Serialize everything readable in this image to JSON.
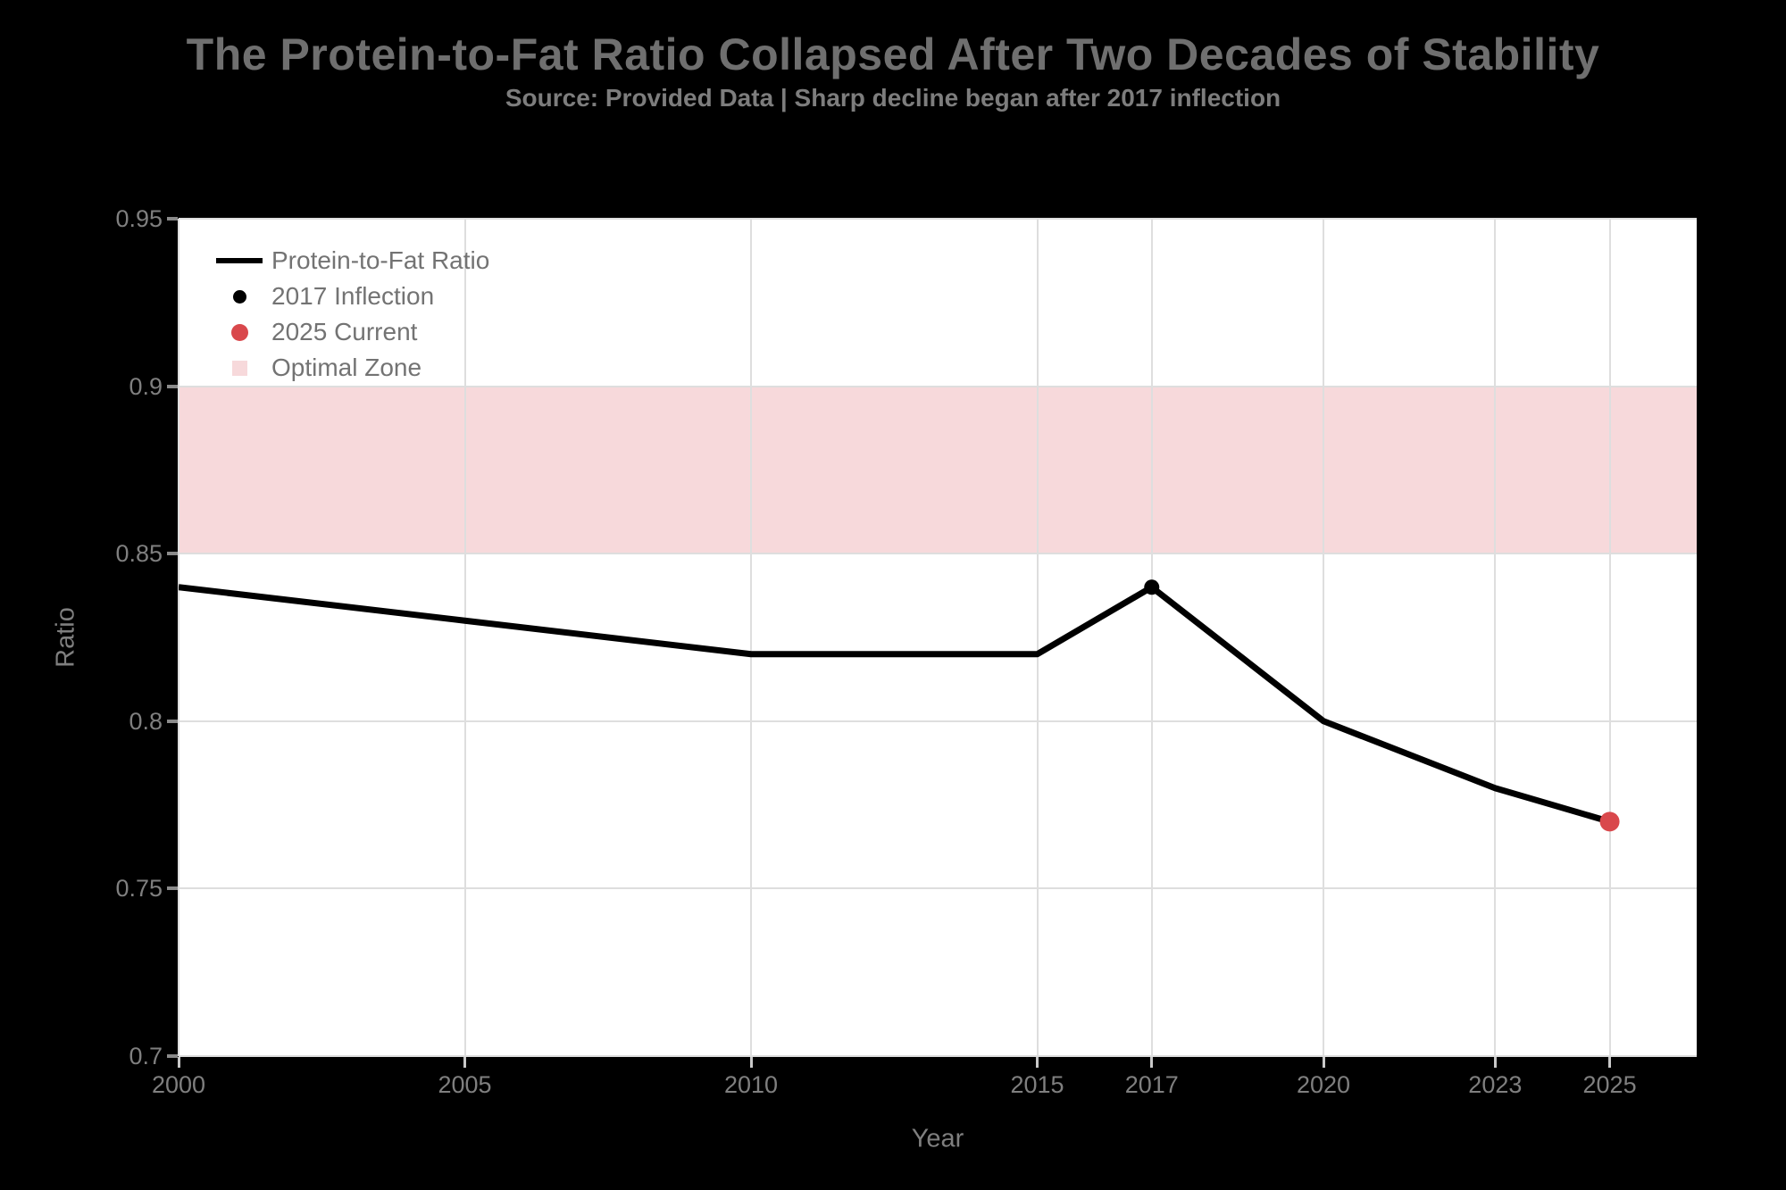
{
  "header": {
    "title": "The Protein-to-Fat Ratio Collapsed After Two Decades of Stability",
    "subtitle": "Source: Provided Data | Sharp decline began after 2017 inflection"
  },
  "chart_data": {
    "type": "line",
    "title": "The Protein-to-Fat Ratio Collapsed After Two Decades of Stability",
    "subtitle": "Source: Provided Data | Sharp decline began after 2017 inflection",
    "xlabel": "Year",
    "ylabel": "Ratio",
    "xlim": [
      2000,
      2026.52
    ],
    "ylim": [
      0.7,
      0.95
    ],
    "grid": true,
    "legend_position": "top-left",
    "x_ticks": [
      {
        "value": 2000,
        "label": "2000"
      },
      {
        "value": 2005,
        "label": "2005"
      },
      {
        "value": 2010,
        "label": "2010"
      },
      {
        "value": 2015,
        "label": "2015"
      },
      {
        "value": 2017,
        "label": "2017"
      },
      {
        "value": 2020,
        "label": "2020"
      },
      {
        "value": 2023,
        "label": "2023"
      },
      {
        "value": 2025,
        "label": "2025"
      }
    ],
    "y_ticks": [
      {
        "value": 0.7,
        "label": "0.7"
      },
      {
        "value": 0.75,
        "label": "0.75"
      },
      {
        "value": 0.8,
        "label": "0.8"
      },
      {
        "value": 0.85,
        "label": "0.85"
      },
      {
        "value": 0.9,
        "label": "0.9"
      },
      {
        "value": 0.95,
        "label": "0.95"
      }
    ],
    "series": [
      {
        "name": "Protein-to-Fat Ratio",
        "color": "#000000",
        "line_width": 7,
        "x": [
          2000,
          2005,
          2010,
          2015,
          2017,
          2020,
          2023,
          2025
        ],
        "y": [
          0.84,
          0.83,
          0.82,
          0.82,
          0.84,
          0.8,
          0.78,
          0.77
        ]
      }
    ],
    "markers": [
      {
        "name": "2017 Inflection",
        "x": 2017,
        "y": 0.84,
        "color": "#000000",
        "diameter": 17
      },
      {
        "name": "2025 Current",
        "x": 2025,
        "y": 0.77,
        "color": "#d9484c",
        "diameter": 22
      }
    ],
    "bands": [
      {
        "name": "Optimal Zone",
        "from": 0.85,
        "to": 0.9,
        "color": "#f7d9db"
      }
    ],
    "legend": [
      {
        "label": "Protein-to-Fat Ratio",
        "swatch": "line",
        "color": "#000000",
        "size": 6
      },
      {
        "label": "2017 Inflection",
        "swatch": "dot",
        "color": "#000000",
        "size": 15
      },
      {
        "label": "2025 Current",
        "swatch": "dot",
        "color": "#d9484c",
        "size": 19
      },
      {
        "label": "Optimal Zone",
        "swatch": "square",
        "color": "#f7d9db",
        "size": 17
      }
    ],
    "colors": {
      "page_bg": "#000000",
      "plot_bg": "#ffffff",
      "grid": "#dedede",
      "title_text": "#6f6f6f",
      "subtitle_text": "#7d7d7d",
      "tick_text": "#7f7f7f",
      "legend_text": "#737373"
    }
  }
}
